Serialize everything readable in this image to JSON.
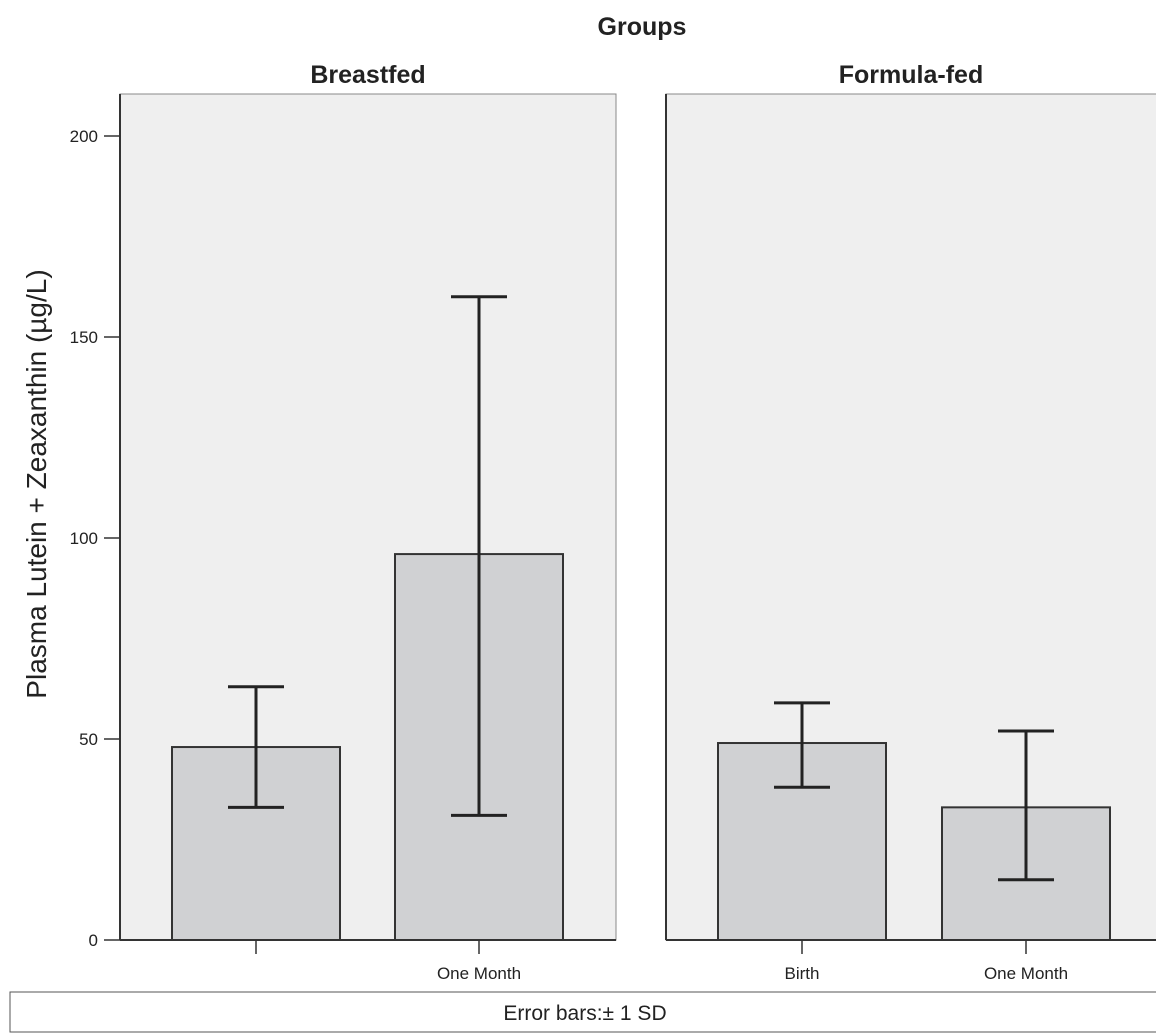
{
  "chart_data": {
    "type": "bar",
    "title": "Groups",
    "ylabel": "Plasma Lutein + Zeaxanthin (µg/L)",
    "ylim": [
      0,
      210
    ],
    "yticks": [
      0,
      50,
      100,
      150,
      200
    ],
    "panels": [
      {
        "name": "Breastfed",
        "categories": [
          "",
          "One Month"
        ],
        "values": [
          48,
          96
        ],
        "error_low": [
          33,
          31
        ],
        "error_high": [
          63,
          160
        ]
      },
      {
        "name": "Formula-fed",
        "categories": [
          "Birth",
          "One Month"
        ],
        "values": [
          49,
          33
        ],
        "error_low": [
          38,
          15
        ],
        "error_high": [
          59,
          52
        ]
      }
    ],
    "footnote": "Error bars:± 1 SD",
    "colors": {
      "bar": "#d0d1d3",
      "panel_bg": "#efefef",
      "stroke": "#333333"
    }
  }
}
